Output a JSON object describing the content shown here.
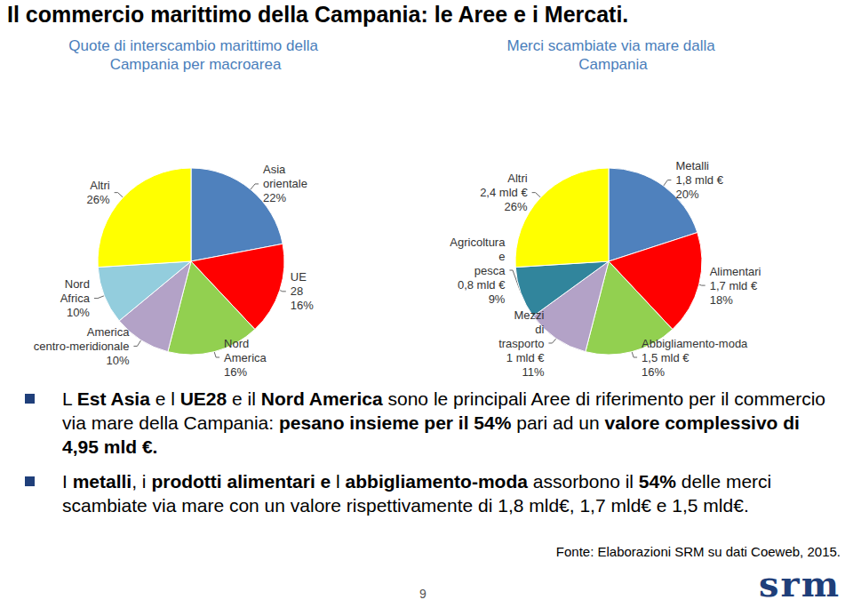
{
  "page": {
    "title": "Il commercio marittimo della Campania: le Aree e i Mercati.",
    "bullets": [
      [
        {
          "text": "L ",
          "bold": false
        },
        {
          "text": "Est Asia",
          "bold": true
        },
        {
          "text": " e l ",
          "bold": false
        },
        {
          "text": "UE28",
          "bold": true
        },
        {
          "text": " e il ",
          "bold": false
        },
        {
          "text": "Nord America",
          "bold": true
        },
        {
          "text": " sono le principali Aree di riferimento per il commercio via mare della Campania: ",
          "bold": false
        },
        {
          "text": "pesano insieme per il 54%",
          "bold": true
        },
        {
          "text": " pari ad un ",
          "bold": false
        },
        {
          "text": "valore complessivo di 4,95 mld €.",
          "bold": true
        }
      ],
      [
        {
          "text": "I ",
          "bold": false
        },
        {
          "text": "metalli",
          "bold": true
        },
        {
          "text": ", i ",
          "bold": false
        },
        {
          "text": "prodotti alimentari e",
          "bold": true
        },
        {
          "text": " l ",
          "bold": false
        },
        {
          "text": "abbigliamento-moda",
          "bold": true
        },
        {
          "text": " assorbono il ",
          "bold": false
        },
        {
          "text": "54%",
          "bold": true
        },
        {
          "text": " delle merci scambiate via mare con un valore rispettivamente di 1,8 mld€, 1,7 mld€ e 1,5 mld€.",
          "bold": false
        }
      ]
    ],
    "source": "Fonte: Elaborazioni SRM su dati Coeweb, 2015.",
    "page_number": "9",
    "logo": "srm"
  },
  "chart_data": [
    {
      "type": "pie",
      "title": "Quote di interscambio marittimo della Campania per macroarea",
      "categories": [
        "Asia orientale",
        "UE 28",
        "Nord America",
        "America centro-meridionale",
        "Nord Africa",
        "Altri"
      ],
      "values": [
        22,
        16,
        16,
        10,
        10,
        26
      ],
      "value_labels": [
        "22%",
        "16%",
        "16%",
        "10%",
        "10%",
        "26%"
      ],
      "colors": [
        "#4f81bd",
        "#ff0000",
        "#92d050",
        "#b3a2c7",
        "#93cddd",
        "#ffff00"
      ],
      "data_labels": true
    },
    {
      "type": "pie",
      "title": "Merci scambiate via mare dalla Campania",
      "categories": [
        "Metalli",
        "Alimentari",
        "Abbigliamento-moda",
        "Mezzi di trasporto",
        "Agricoltura e pesca",
        "Altri"
      ],
      "values": [
        20,
        18,
        16,
        11,
        9,
        26
      ],
      "value_labels": [
        "20%",
        "18%",
        "16%",
        "11%",
        "9%",
        "26%"
      ],
      "amount_labels": [
        "1,8 mld €",
        "1,7 mld €",
        "1,5 mld €",
        "1 mld €",
        "0,8 mld €",
        "2,4 mld €"
      ],
      "colors": [
        "#4f81bd",
        "#ff0000",
        "#92d050",
        "#b3a2c7",
        "#31859c",
        "#ffff00"
      ],
      "data_labels": true
    }
  ]
}
